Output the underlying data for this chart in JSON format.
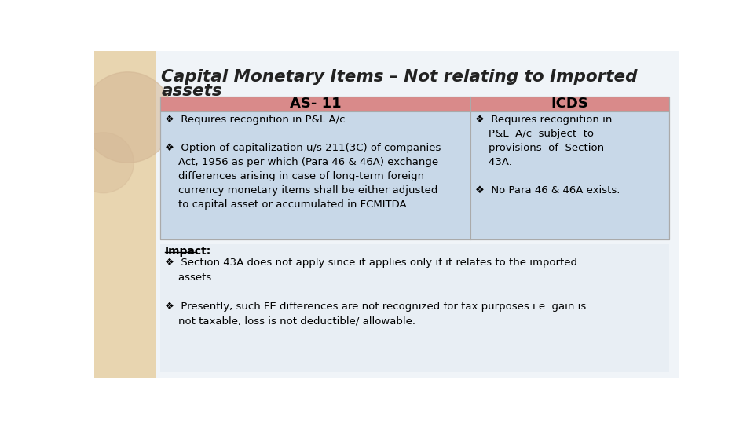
{
  "title_line1": "Capital Monetary Items – Not relating to Imported",
  "title_line2": "assets",
  "slide_bg": "#ffffff",
  "header_bg": "#d98a8a",
  "cell_bg": "#c8d8e8",
  "impact_bg": "#e8eef4",
  "header_text_color": "#000000",
  "body_text_color": "#000000",
  "col1_header": "AS- 11",
  "col2_header": "ICDS",
  "impact_title": "Impact:",
  "left_panel_color": "#e8d5b0",
  "left_panel_circle_color": "#d4b896"
}
